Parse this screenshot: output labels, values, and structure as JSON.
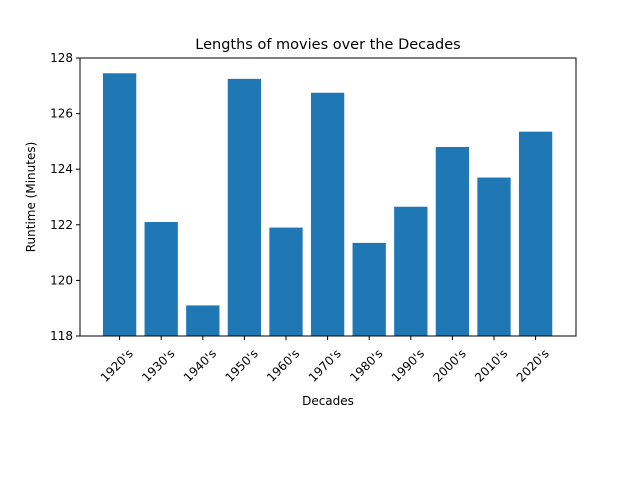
{
  "chart_data": {
    "type": "bar",
    "title": "Lengths of movies over the Decades",
    "xlabel": "Decades",
    "ylabel": "Runtime (Minutes)",
    "categories": [
      "1920's",
      "1930's",
      "1940's",
      "1950's",
      "1960's",
      "1970's",
      "1980's",
      "1990's",
      "2000's",
      "2010's",
      "2020's"
    ],
    "values": [
      127.45,
      122.1,
      119.1,
      127.25,
      121.9,
      126.75,
      121.35,
      122.65,
      124.8,
      123.7,
      125.35
    ],
    "ylim": [
      118,
      128
    ],
    "yticks": [
      "118",
      "120",
      "122",
      "124",
      "126",
      "128"
    ],
    "bar_color": "#1f77b4",
    "grid": false,
    "legend": "none"
  }
}
